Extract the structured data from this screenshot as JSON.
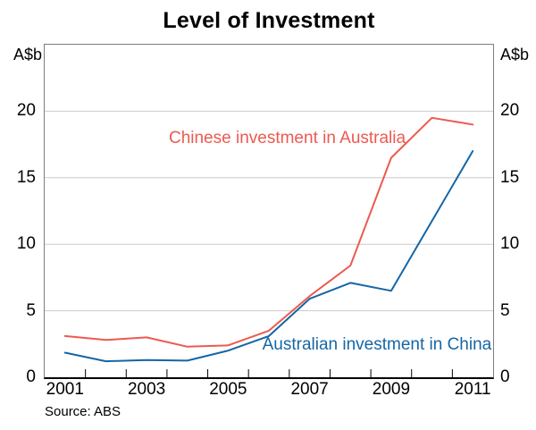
{
  "title": "Level of Investment",
  "left_axis_unit": "A$b",
  "right_axis_unit": "A$b",
  "source": "Source: ABS",
  "colors": {
    "red": "#ec5a50",
    "blue": "#1566a6",
    "grid": "#cbcbcb",
    "frame": "#7d7d7d",
    "axis": "#000000"
  },
  "chart_data": {
    "type": "line",
    "title": "Level of Investment",
    "ylabel_left": "A$b",
    "ylabel_right": "A$b",
    "x": [
      2001,
      2002,
      2003,
      2004,
      2005,
      2006,
      2007,
      2008,
      2009,
      2010,
      2011
    ],
    "series": [
      {
        "name": "Chinese investment in Australia",
        "color": "#ec5a50",
        "values": [
          3.1,
          2.8,
          3.0,
          2.3,
          2.4,
          3.5,
          6.1,
          8.4,
          16.5,
          19.5,
          19.0
        ]
      },
      {
        "name": "Australian investment in China",
        "color": "#1566a6",
        "values": [
          1.85,
          1.2,
          1.3,
          1.25,
          2.0,
          3.1,
          5.9,
          7.1,
          6.5,
          11.75,
          17.0
        ]
      }
    ],
    "xlim": [
      2000.5,
      2011.5
    ],
    "ylim": [
      0,
      25
    ],
    "yticks": [
      0,
      5,
      10,
      15,
      20
    ],
    "xticks_labeled": [
      2001,
      2003,
      2005,
      2007,
      2009,
      2011
    ],
    "xticks_minor": [
      2001.5,
      2002.5,
      2003.5,
      2004.5,
      2005.5,
      2006.5,
      2007.5,
      2008.5,
      2009.5,
      2010.5
    ],
    "grid": "horizontal",
    "legend_position": "none",
    "annotations": [
      {
        "text": "Chinese investment in Australia",
        "x": 2006.45,
        "y": 17.95,
        "color": "#ec5a50"
      },
      {
        "text": "Australian investment in China",
        "x": 2008.65,
        "y": 2.4,
        "color": "#1566a6"
      }
    ]
  }
}
